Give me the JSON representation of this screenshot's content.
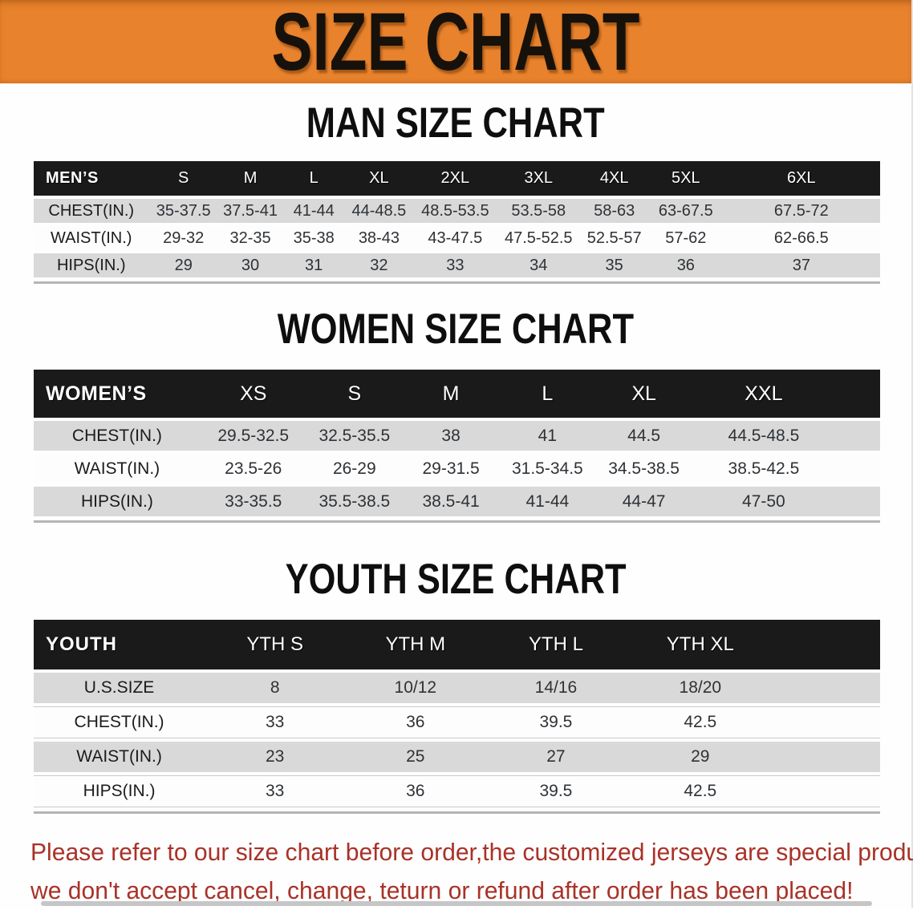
{
  "banner": {
    "title": "SIZE CHART",
    "background": "#E8822C"
  },
  "sections": [
    {
      "heading": "MAN SIZE CHART",
      "corner_label": "MEN’S",
      "sizes": [
        "S",
        "M",
        "L",
        "XL",
        "2XL",
        "3XL",
        "4XL",
        "5XL",
        "6XL"
      ],
      "col_widths": [
        "13.6%",
        "8.2%",
        "7.6%",
        "7.4%",
        "8.0%",
        "10.0%",
        "9.7%",
        "8.2%",
        "8.7%",
        "18.6%"
      ],
      "rows": [
        {
          "label": "CHEST(IN.)",
          "shade": true,
          "values": [
            "35-37.5",
            "37.5-41",
            "41-44",
            "44-48.5",
            "48.5-53.5",
            "53.5-58",
            "58-63",
            "63-67.5",
            "67.5-72"
          ]
        },
        {
          "label": "WAIST(IN.)",
          "shade": false,
          "values": [
            "29-32",
            "32-35",
            "35-38",
            "38-43",
            "43-47.5",
            "47.5-52.5",
            "52.5-57",
            "57-62",
            "62-66.5"
          ]
        },
        {
          "label": "HIPS(IN.)",
          "shade": true,
          "values": [
            "29",
            "30",
            "31",
            "32",
            "33",
            "34",
            "35",
            "36",
            "37"
          ]
        }
      ]
    },
    {
      "heading": "WOMEN SIZE CHART",
      "corner_label": "WOMEN’S",
      "sizes": [
        "XS",
        "S",
        "M",
        "L",
        "XL",
        "XXL"
      ],
      "col_widths": [
        "19.7%",
        "12.5%",
        "11.4%",
        "11.4%",
        "11.4%",
        "11.4%",
        "16.9%",
        "5.3%"
      ],
      "rows": [
        {
          "label": "CHEST(IN.)",
          "shade": true,
          "values": [
            "29.5-32.5",
            "32.5-35.5",
            "38",
            "41",
            "44.5",
            "44.5-48.5"
          ]
        },
        {
          "label": "WAIST(IN.)",
          "shade": false,
          "values": [
            "23.5-26",
            "26-29",
            "29-31.5",
            "31.5-34.5",
            "34.5-38.5",
            "38.5-42.5"
          ]
        },
        {
          "label": "HIPS(IN.)",
          "shade": true,
          "values": [
            "33-35.5",
            "35.5-38.5",
            "38.5-41",
            "41-44",
            "44-47",
            "47-50"
          ]
        }
      ]
    },
    {
      "heading": "YOUTH SIZE CHART",
      "corner_label": "YOUTH",
      "sizes": [
        "YTH S",
        "YTH M",
        "YTH L",
        "YTH XL"
      ],
      "col_widths": [
        "20.2%",
        "16.6%",
        "16.6%",
        "16.6%",
        "17.5%",
        "12.5%"
      ],
      "rows": [
        {
          "label": "U.S.SIZE",
          "shade": true,
          "values": [
            "8",
            "10/12",
            "14/16",
            "18/20"
          ]
        },
        {
          "label": "CHEST(IN.)",
          "shade": false,
          "values": [
            "33",
            "36",
            "39.5",
            "42.5"
          ]
        },
        {
          "label": "WAIST(IN.)",
          "shade": true,
          "values": [
            "23",
            "25",
            "27",
            "29"
          ]
        },
        {
          "label": "HIPS(IN.)",
          "shade": false,
          "values": [
            "33",
            "36",
            "39.5",
            "42.5"
          ]
        }
      ]
    }
  ],
  "disclaimer": {
    "line1": "Please refer to our size chart before order,the customized jerseys are special products,",
    "line2": "we don't accept cancel, change, teturn or refund after order has been placed!"
  },
  "colors": {
    "banner_orange": "#E8822C",
    "table_header_black": "#1A1A1A",
    "stripe_gray": "#D9D9D9",
    "warning_red": "#A93228"
  }
}
